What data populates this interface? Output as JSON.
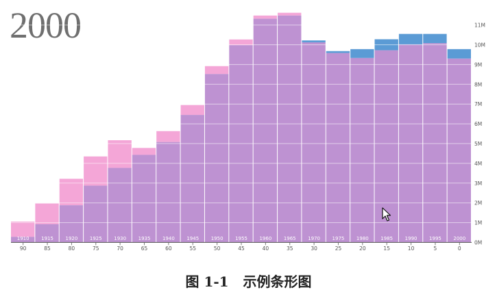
{
  "title_year": "2000",
  "caption": "图 1-1   示例条形图",
  "colors": {
    "male": "#5b9bd5",
    "female": "#f4a6d7",
    "overlap": "#be92d2",
    "bar_label": "#ffffff",
    "tick_label": "#555555"
  },
  "chart_data": {
    "type": "bar",
    "x_birth_years": [
      "1910",
      "1915",
      "1920",
      "1925",
      "1930",
      "1935",
      "1940",
      "1945",
      "1950",
      "1955",
      "1960",
      "1965",
      "1970",
      "1975",
      "1980",
      "1985",
      "1990",
      "1995",
      "2000"
    ],
    "x_ages": [
      "90",
      "85",
      "80",
      "75",
      "70",
      "65",
      "60",
      "55",
      "50",
      "45",
      "40",
      "35",
      "30",
      "25",
      "20",
      "15",
      "10",
      "5",
      "0"
    ],
    "series": [
      {
        "color": "#5b9bd5",
        "values": [
          0.28,
          0.92,
          1.88,
          2.87,
          3.77,
          4.43,
          5.08,
          6.45,
          8.52,
          9.98,
          11.32,
          11.48,
          10.22,
          9.68,
          9.78,
          10.28,
          10.55,
          10.55,
          9.78
        ]
      },
      {
        "color": "#f4a6d7",
        "values": [
          1.05,
          1.97,
          3.22,
          4.35,
          5.17,
          4.78,
          5.63,
          6.95,
          8.92,
          10.27,
          11.48,
          11.62,
          10.12,
          9.58,
          9.33,
          9.72,
          10.02,
          10.08,
          9.3
        ]
      }
    ],
    "y_ticks": [
      "0M",
      "1M",
      "2M",
      "3M",
      "4M",
      "5M",
      "6M",
      "7M",
      "8M",
      "9M",
      "10M",
      "11M"
    ],
    "ylim": [
      0,
      12
    ],
    "grid": true
  }
}
